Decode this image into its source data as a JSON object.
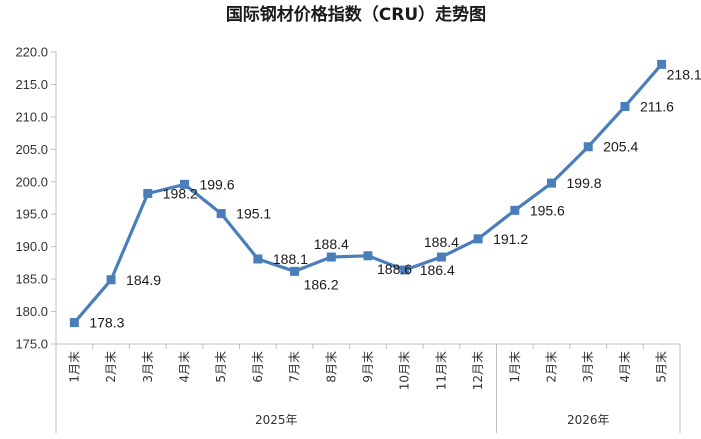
{
  "chart_data": {
    "type": "line",
    "title": "国际钢材价格指数（CRU）走势图",
    "categories": [
      "1月末",
      "2月末",
      "3月末",
      "4月末",
      "5月末",
      "6月末",
      "7月末",
      "8月末",
      "9月末",
      "10月末",
      "11月末",
      "12月末",
      "1月末",
      "2月末",
      "3月末",
      "4月末",
      "5月末"
    ],
    "groups": [
      {
        "label": "2025年",
        "count": 12
      },
      {
        "label": "2026年",
        "count": 5
      }
    ],
    "series": [
      {
        "values": [
          178.3,
          184.9,
          198.2,
          199.6,
          195.1,
          188.1,
          186.2,
          188.4,
          188.6,
          186.4,
          188.4,
          191.2,
          195.6,
          199.8,
          205.4,
          211.6,
          218.1
        ],
        "labels": [
          "178.3",
          "184.9",
          "198.2",
          "199.6",
          "195.1",
          "188.1",
          "186.2",
          "188.4",
          "188.6",
          "186.4",
          "188.4",
          "191.2",
          "195.6",
          "199.8",
          "205.4",
          "211.6",
          "218.1"
        ],
        "color": "#4a7ebb"
      }
    ],
    "ylim": [
      175,
      220
    ],
    "yticks": [
      "175.0",
      "180.0",
      "185.0",
      "190.0",
      "195.0",
      "200.0",
      "205.0",
      "210.0",
      "215.0",
      "220.0"
    ],
    "grid": false,
    "legend": "none"
  }
}
